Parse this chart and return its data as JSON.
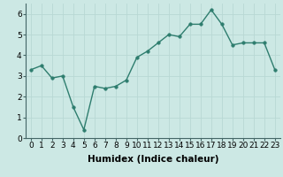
{
  "x": [
    0,
    1,
    2,
    3,
    4,
    5,
    6,
    7,
    8,
    9,
    10,
    11,
    12,
    13,
    14,
    15,
    16,
    17,
    18,
    19,
    20,
    21,
    22,
    23
  ],
  "y": [
    3.3,
    3.5,
    2.9,
    3.0,
    1.5,
    0.4,
    2.5,
    2.4,
    2.5,
    2.8,
    3.9,
    4.2,
    4.6,
    5.0,
    4.9,
    5.5,
    5.5,
    6.2,
    5.5,
    4.5,
    4.6,
    4.6,
    4.6,
    3.3
  ],
  "line_color": "#2e7d6e",
  "marker_color": "#2e7d6e",
  "bg_color": "#cce8e4",
  "grid_color": "#b8d8d4",
  "xlabel": "Humidex (Indice chaleur)",
  "ylim": [
    0,
    6.5
  ],
  "xlim": [
    -0.5,
    23.5
  ],
  "yticks": [
    0,
    1,
    2,
    3,
    4,
    5,
    6
  ],
  "xtick_labels": [
    "0",
    "1",
    "2",
    "3",
    "4",
    "5",
    "6",
    "7",
    "8",
    "9",
    "10",
    "11",
    "12",
    "13",
    "14",
    "15",
    "16",
    "17",
    "18",
    "19",
    "20",
    "21",
    "22",
    "23"
  ],
  "xlabel_fontsize": 7.5,
  "tick_fontsize": 6.5,
  "line_width": 1.0,
  "marker_size": 2.5
}
